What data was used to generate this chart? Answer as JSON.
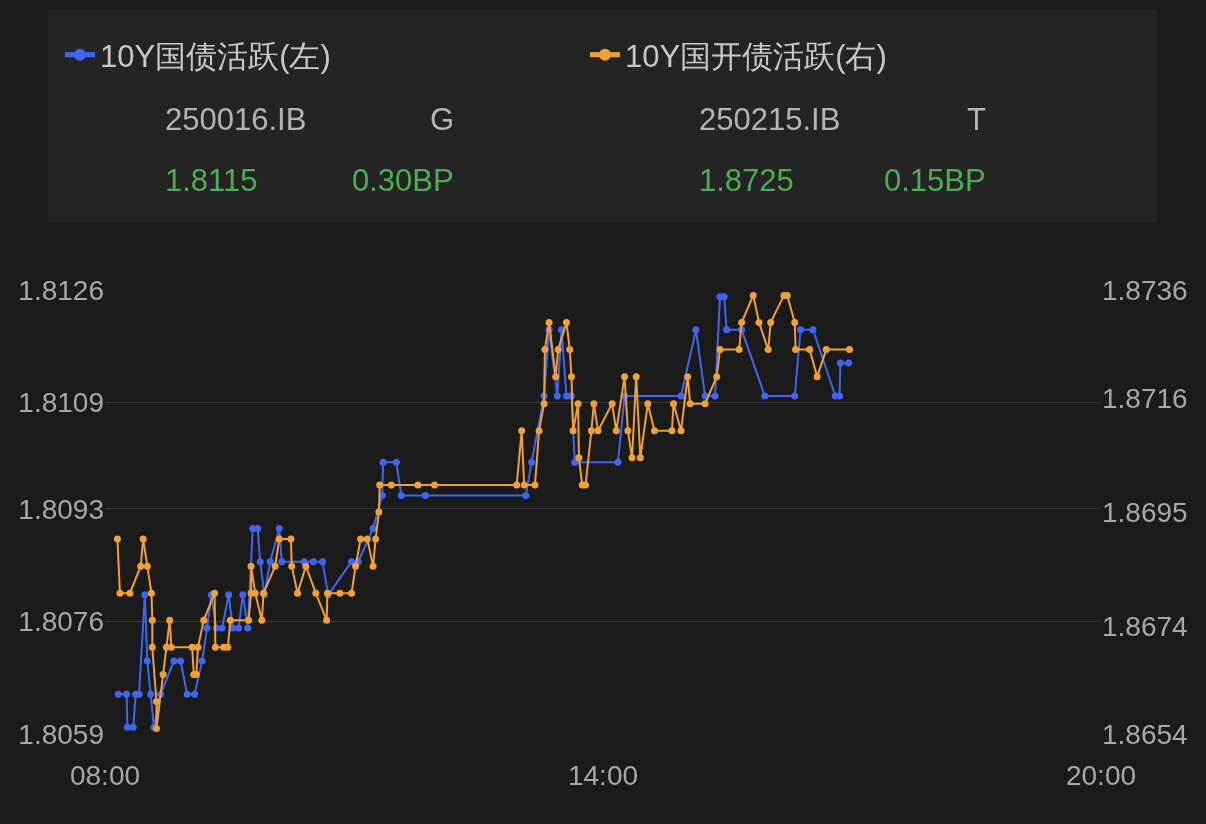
{
  "chart_data": {
    "type": "line",
    "xlim": [
      8,
      20
    ],
    "xticks": [
      {
        "value": 8,
        "label": "08:00"
      },
      {
        "value": 14,
        "label": "14:00"
      },
      {
        "value": 20,
        "label": "20:00"
      }
    ],
    "ylim": [
      1.8059,
      1.8126
    ],
    "yticks": [
      1.8059,
      1.8076,
      1.8093,
      1.8109,
      1.8126
    ],
    "y2lim": [
      1.8654,
      1.8736
    ],
    "y2ticks": [
      1.8654,
      1.8674,
      1.8695,
      1.8716,
      1.8736
    ],
    "grid": "y",
    "legend": "top",
    "marker": "circle",
    "line_style": "solid",
    "annotations": [
      "250016.IB",
      "G",
      "1.8115",
      "0.30BP",
      "250215.IB",
      "T",
      "1.8725",
      "0.15BP"
    ],
    "series": [
      {
        "name": "10Y国债活跃(左)",
        "color": "#3f66f2",
        "x": [
          8.16,
          8.26,
          8.27,
          8.34,
          8.37,
          8.41,
          8.48,
          8.51,
          8.55,
          8.59,
          8.67,
          8.83,
          8.91,
          8.99,
          9.08,
          9.17,
          9.23,
          9.28,
          9.34,
          9.41,
          9.49,
          9.54,
          9.61,
          9.66,
          9.72,
          9.78,
          9.84,
          9.87,
          9.92,
          9.99,
          10.1,
          10.13,
          10.4,
          10.51,
          10.62,
          10.69,
          10.97,
          11.05,
          11.23,
          11.34,
          11.35,
          11.51,
          11.57,
          11.86,
          13.07,
          13.14,
          13.29,
          13.35,
          13.45,
          13.5,
          13.56,
          13.62,
          13.66,
          14.18,
          14.26,
          14.94,
          15.12,
          15.23,
          15.35,
          15.41,
          15.46,
          15.49,
          15.67,
          15.95,
          16.31,
          16.38,
          16.53,
          16.8,
          16.85,
          16.86,
          16.96
        ],
        "values": [
          1.8065,
          1.8065,
          1.806,
          1.806,
          1.8065,
          1.8065,
          1.808,
          1.807,
          1.8065,
          1.806,
          1.8065,
          1.807,
          1.807,
          1.8065,
          1.8065,
          1.807,
          1.8075,
          1.808,
          1.8075,
          1.8075,
          1.808,
          1.8075,
          1.8075,
          1.808,
          1.8075,
          1.809,
          1.809,
          1.8085,
          1.808,
          1.8085,
          1.809,
          1.8085,
          1.8085,
          1.8085,
          1.8085,
          1.808,
          1.8085,
          1.8085,
          1.809,
          1.8095,
          1.81,
          1.81,
          1.8095,
          1.8095,
          1.8095,
          1.81,
          1.811,
          1.812,
          1.811,
          1.812,
          1.811,
          1.811,
          1.81,
          1.81,
          1.811,
          1.811,
          1.812,
          1.811,
          1.811,
          1.8125,
          1.8125,
          1.812,
          1.812,
          1.811,
          1.811,
          1.812,
          1.812,
          1.811,
          1.811,
          1.8115,
          1.8115
        ]
      },
      {
        "name": "10Y国开债活跃(右)",
        "color": "#f0a035",
        "axis": "y2",
        "x": [
          8.15,
          8.18,
          8.3,
          8.43,
          8.46,
          8.51,
          8.56,
          8.57,
          8.57,
          8.62,
          8.62,
          8.7,
          8.74,
          8.78,
          8.8,
          9.05,
          9.07,
          9.1,
          9.12,
          9.19,
          9.32,
          9.33,
          9.43,
          9.48,
          9.51,
          9.73,
          9.76,
          9.76,
          9.81,
          9.89,
          9.91,
          10.05,
          10.1,
          10.24,
          10.25,
          10.32,
          10.42,
          10.54,
          10.67,
          10.68,
          10.83,
          10.97,
          11.02,
          11.08,
          11.16,
          11.23,
          11.26,
          11.3,
          11.31,
          11.45,
          11.77,
          11.97,
          12.96,
          13.02,
          13.05,
          13.18,
          13.23,
          13.29,
          13.3,
          13.35,
          13.43,
          13.46,
          13.56,
          13.6,
          13.62,
          13.64,
          13.7,
          13.71,
          13.75,
          13.79,
          13.86,
          13.89,
          13.94,
          14.11,
          14.16,
          14.26,
          14.3,
          14.35,
          14.4,
          14.45,
          14.54,
          14.62,
          14.83,
          14.85,
          14.94,
          15.02,
          15.05,
          15.23,
          15.37,
          15.41,
          15.64,
          15.67,
          15.81,
          15.88,
          15.99,
          16.02,
          16.18,
          16.22,
          16.31,
          16.32,
          16.49,
          16.58,
          16.69,
          16.97
        ],
        "values": [
          1.869,
          1.868,
          1.868,
          1.8685,
          1.869,
          1.8685,
          1.868,
          1.8675,
          1.867,
          1.866,
          1.8655,
          1.8665,
          1.867,
          1.8675,
          1.867,
          1.867,
          1.8665,
          1.8665,
          1.867,
          1.8675,
          1.868,
          1.867,
          1.867,
          1.867,
          1.8675,
          1.8675,
          1.868,
          1.8685,
          1.868,
          1.8675,
          1.868,
          1.8685,
          1.869,
          1.869,
          1.8685,
          1.868,
          1.8685,
          1.868,
          1.8675,
          1.868,
          1.868,
          1.868,
          1.8685,
          1.869,
          1.869,
          1.8685,
          1.869,
          1.8695,
          1.87,
          1.87,
          1.87,
          1.87,
          1.87,
          1.871,
          1.87,
          1.87,
          1.871,
          1.8715,
          1.8725,
          1.873,
          1.872,
          1.8725,
          1.873,
          1.8725,
          1.872,
          1.871,
          1.8715,
          1.8705,
          1.87,
          1.87,
          1.871,
          1.8715,
          1.871,
          1.8715,
          1.871,
          1.872,
          1.871,
          1.8705,
          1.872,
          1.8705,
          1.8715,
          1.871,
          1.871,
          1.8715,
          1.871,
          1.872,
          1.8715,
          1.8715,
          1.872,
          1.8725,
          1.8725,
          1.873,
          1.8735,
          1.873,
          1.8725,
          1.873,
          1.8735,
          1.8735,
          1.873,
          1.8725,
          1.8725,
          1.872,
          1.8725,
          1.8725
        ]
      }
    ]
  }
}
